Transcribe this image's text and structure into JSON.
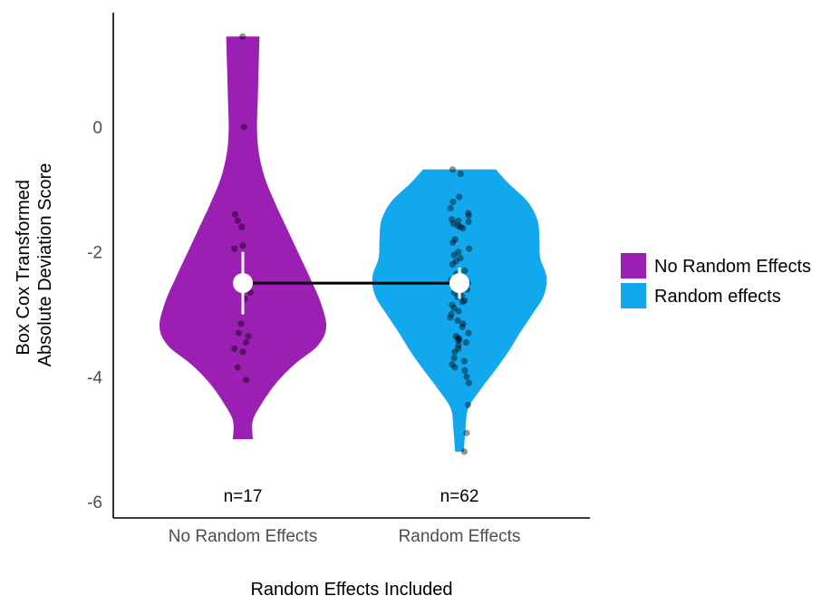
{
  "chart_data": {
    "type": "violin",
    "xlabel": "Random Effects Included",
    "ylabel": [
      "Box Cox Transformed",
      "Absolute Deviation Score"
    ],
    "ylim": [
      -6.2,
      1.85
    ],
    "yticks": [
      0,
      -2,
      -4,
      -6
    ],
    "categories": [
      "No Random Effects",
      "Random Effects"
    ],
    "legend": {
      "placement": "right",
      "entries": [
        {
          "label": "No Random Effects",
          "color": "#9b1fb3"
        },
        {
          "label": "Random effects",
          "color": "#12a8ee"
        }
      ]
    },
    "groups": [
      {
        "category": "No Random Effects",
        "color": "#9b1fb3",
        "n_label": "n=17",
        "mean": -2.5,
        "ci": [
          -2.0,
          -3.0
        ],
        "range": [
          -5.0,
          1.45
        ],
        "density": [
          [
            1.45,
            0.2
          ],
          [
            1.0,
            0.19
          ],
          [
            0.5,
            0.18
          ],
          [
            0.0,
            0.17
          ],
          [
            -0.4,
            0.19
          ],
          [
            -0.8,
            0.26
          ],
          [
            -1.2,
            0.38
          ],
          [
            -1.6,
            0.52
          ],
          [
            -2.0,
            0.66
          ],
          [
            -2.4,
            0.8
          ],
          [
            -2.8,
            0.93
          ],
          [
            -3.2,
            1.0
          ],
          [
            -3.5,
            0.9
          ],
          [
            -3.8,
            0.62
          ],
          [
            -4.1,
            0.4
          ],
          [
            -4.4,
            0.24
          ],
          [
            -4.7,
            0.12
          ],
          [
            -5.0,
            0.12
          ]
        ],
        "points": [
          1.45,
          0.0,
          -1.4,
          -1.5,
          -1.6,
          -1.9,
          -1.95,
          -2.65,
          -2.75,
          -3.15,
          -3.3,
          -3.35,
          -3.45,
          -3.55,
          -3.6,
          -3.85,
          -4.05
        ]
      },
      {
        "category": "Random Effects",
        "color": "#12a8ee",
        "n_label": "n=62",
        "mean": -2.5,
        "ci": [
          -2.25,
          -2.75
        ],
        "range": [
          -5.2,
          -0.68
        ],
        "density": [
          [
            -0.68,
            0.41
          ],
          [
            -0.9,
            0.55
          ],
          [
            -1.2,
            0.77
          ],
          [
            -1.5,
            0.88
          ],
          [
            -1.8,
            0.9
          ],
          [
            -2.1,
            0.91
          ],
          [
            -2.4,
            0.98
          ],
          [
            -2.7,
            0.95
          ],
          [
            -3.0,
            0.82
          ],
          [
            -3.3,
            0.68
          ],
          [
            -3.6,
            0.55
          ],
          [
            -3.9,
            0.4
          ],
          [
            -4.2,
            0.24
          ],
          [
            -4.5,
            0.1
          ],
          [
            -4.8,
            0.07
          ],
          [
            -5.2,
            0.05
          ]
        ],
        "points": [
          -0.68,
          -0.75,
          -1.12,
          -1.2,
          -1.3,
          -1.38,
          -1.42,
          -1.48,
          -1.5,
          -1.52,
          -1.55,
          -1.58,
          -1.6,
          -1.62,
          -1.8,
          -1.85,
          -1.95,
          -2.0,
          -2.05,
          -2.1,
          -2.15,
          -2.2,
          -2.3,
          -2.35,
          -2.4,
          -2.45,
          -2.5,
          -2.55,
          -2.6,
          -2.62,
          -2.65,
          -2.7,
          -2.72,
          -2.78,
          -2.8,
          -2.85,
          -2.9,
          -2.95,
          -3.0,
          -3.05,
          -3.1,
          -3.15,
          -3.2,
          -3.3,
          -3.35,
          -3.38,
          -3.4,
          -3.42,
          -3.45,
          -3.5,
          -3.55,
          -3.6,
          -3.7,
          -3.75,
          -3.8,
          -3.85,
          -3.9,
          -4.0,
          -4.1,
          -4.45,
          -4.9,
          -5.2
        ]
      }
    ]
  }
}
